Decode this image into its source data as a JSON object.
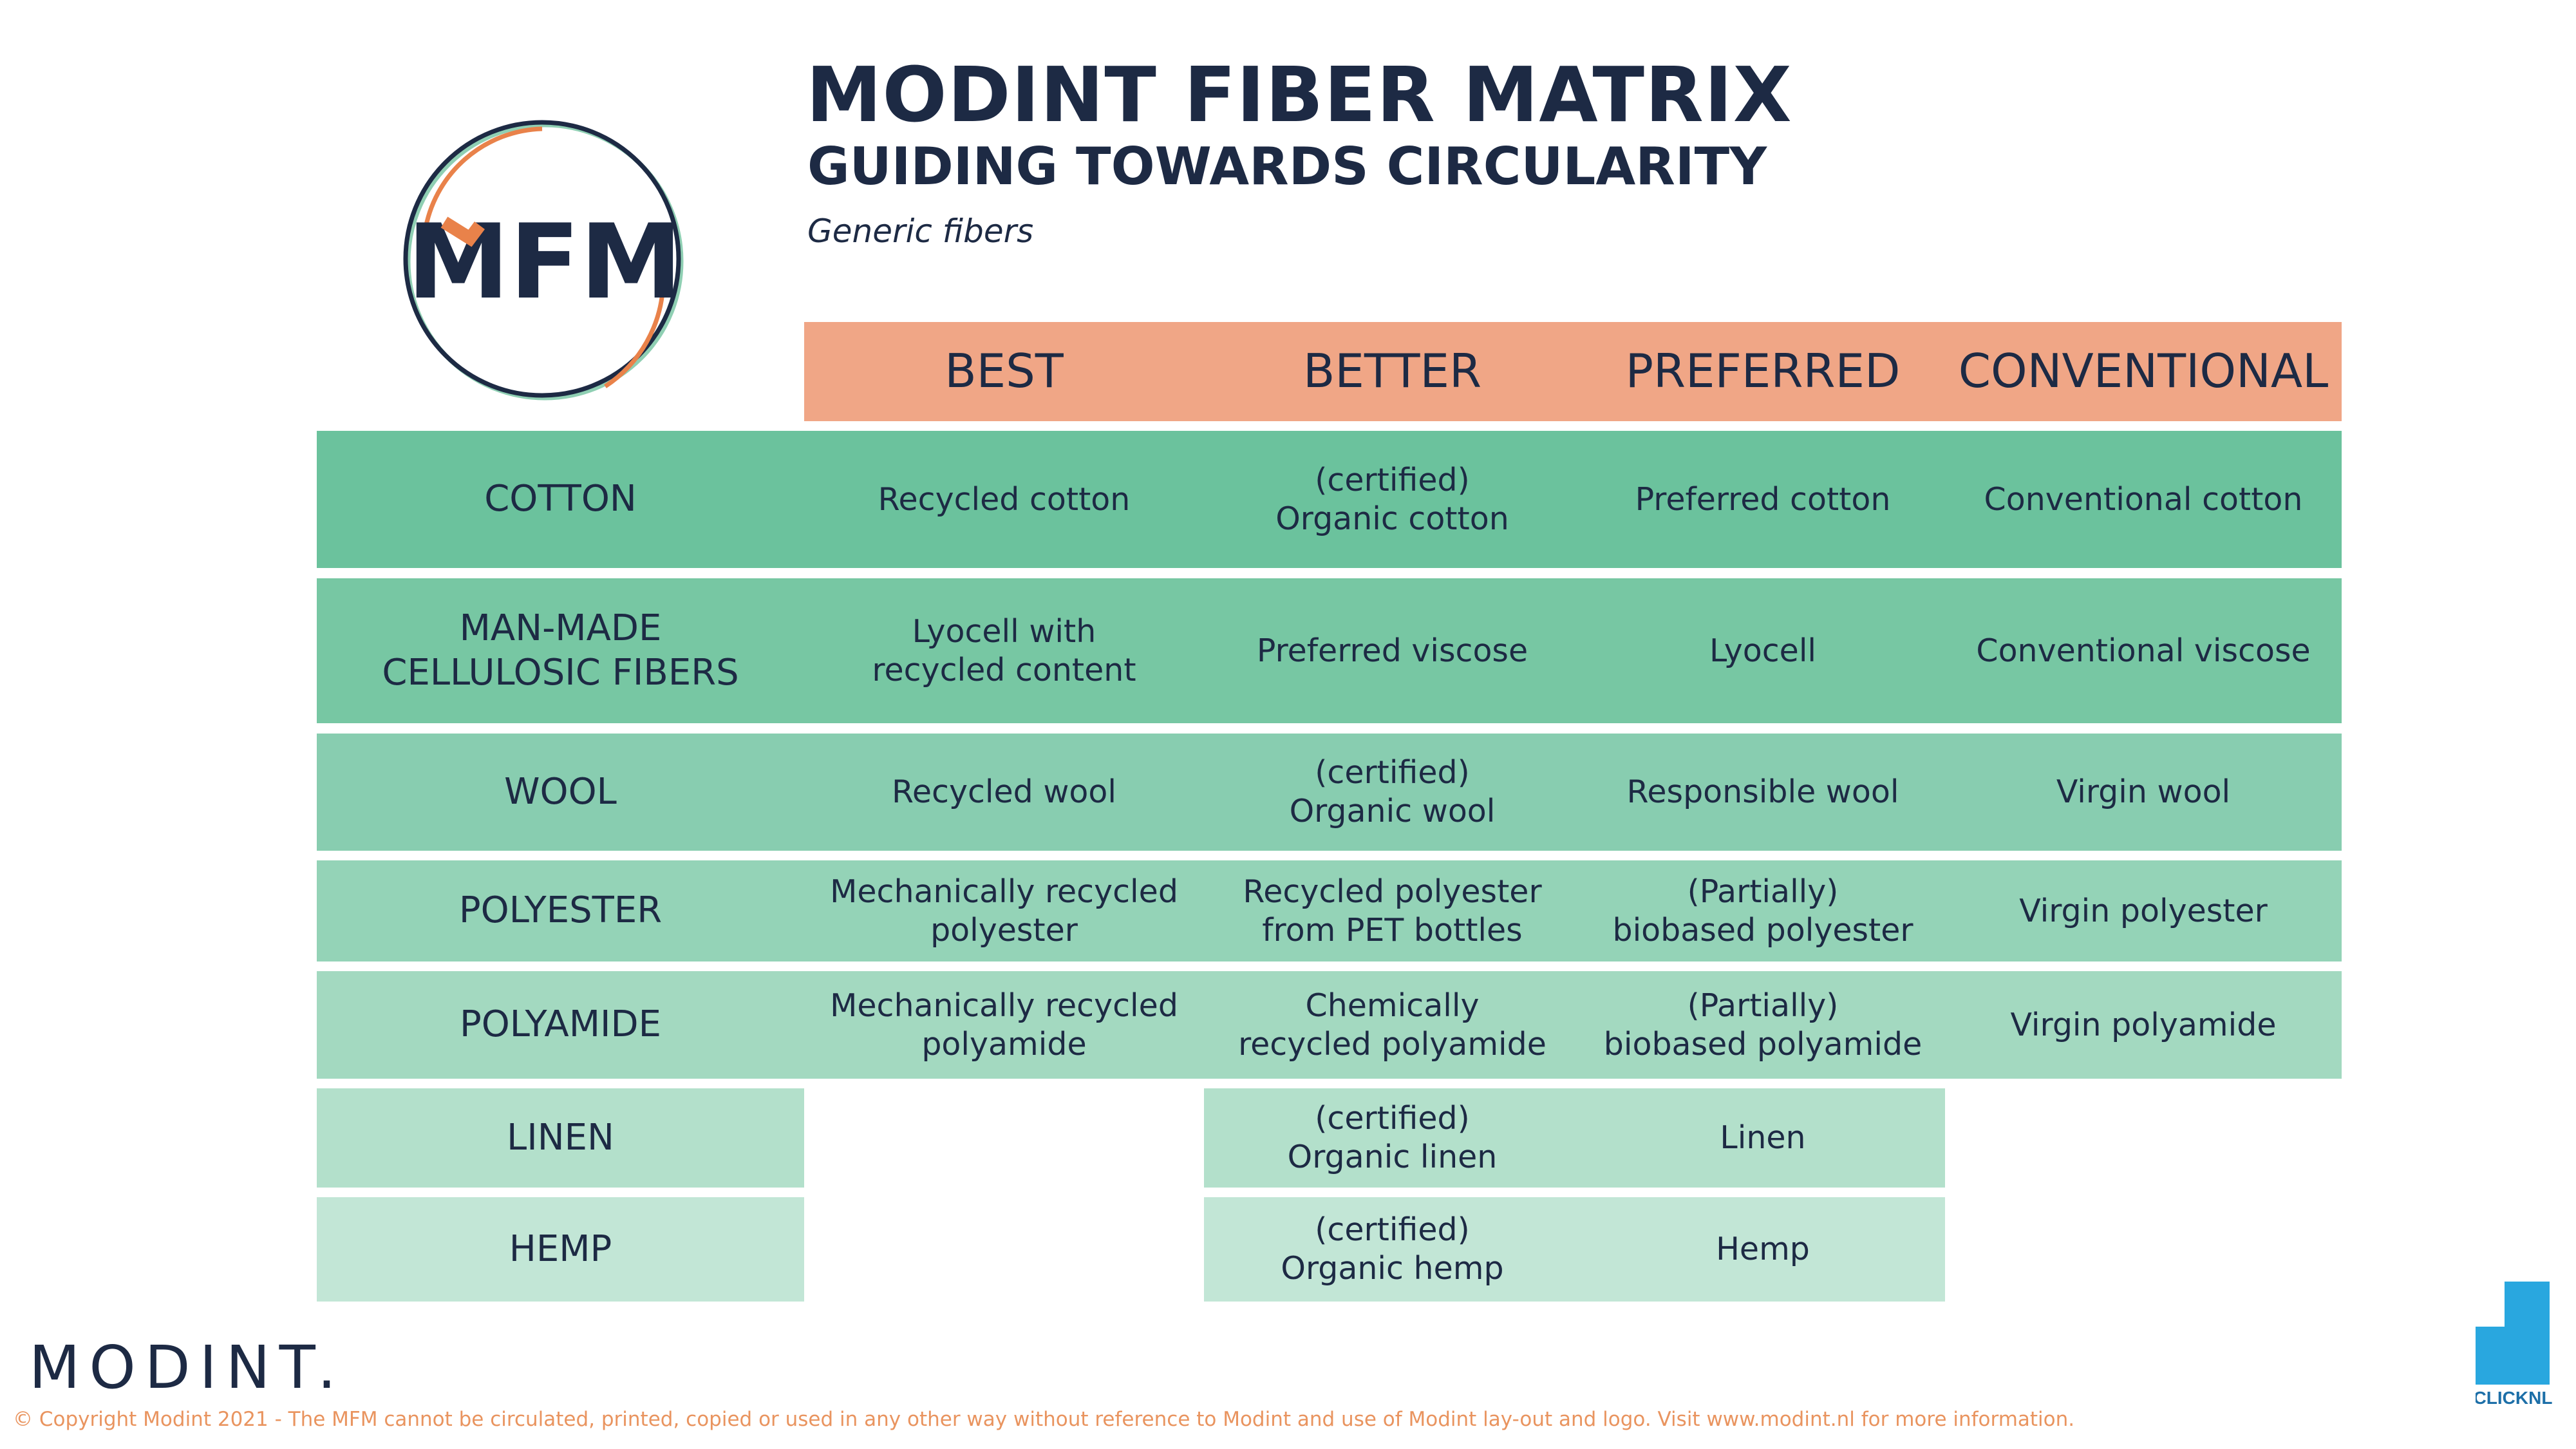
{
  "header": {
    "title": "MODINT FIBER MATRIX",
    "subtitle": "GUIDING TOWARDS CIRCULARITY",
    "description": "Generic fibers",
    "logo": "MFM"
  },
  "columns": [
    "BEST",
    "BETTER",
    "PREFERRED",
    "CONVENTIONAL"
  ],
  "rows": [
    {
      "label": [
        "COTTON"
      ],
      "color": "#6bc29d",
      "cells": [
        [
          "Recycled cotton"
        ],
        [
          "(certified)",
          "Organic cotton"
        ],
        [
          "Preferred cotton"
        ],
        [
          "Conventional cotton"
        ]
      ]
    },
    {
      "label": [
        "MAN-MADE",
        "CELLULOSIC FIBERS"
      ],
      "color": "#77c7a3",
      "cells": [
        [
          "Lyocell with",
          "recycled content"
        ],
        [
          "Preferred viscose"
        ],
        [
          "Lyocell"
        ],
        [
          "Conventional viscose"
        ]
      ]
    },
    {
      "label": [
        "WOOL"
      ],
      "color": "#88cdb0",
      "cells": [
        [
          "Recycled wool"
        ],
        [
          "(certified)",
          "Organic wool"
        ],
        [
          "Responsible wool"
        ],
        [
          "Virgin wool"
        ]
      ]
    },
    {
      "label": [
        "POLYESTER"
      ],
      "color": "#94d3b7",
      "cells": [
        [
          "Mechanically recycled",
          "polyester"
        ],
        [
          "Recycled polyester",
          "from PET bottles"
        ],
        [
          "(Partially)",
          "biobased polyester"
        ],
        [
          "Virgin polyester"
        ]
      ]
    },
    {
      "label": [
        "POLYAMIDE"
      ],
      "color": "#a3d9c0",
      "cells": [
        [
          "Mechanically recycled",
          "polyamide"
        ],
        [
          "Chemically",
          "recycled polyamide"
        ],
        [
          "(Partially)",
          "biobased polyamide"
        ],
        [
          "Virgin polyamide"
        ]
      ]
    },
    {
      "label": [
        "LINEN"
      ],
      "color": "#b3e0cb",
      "cells": [
        null,
        [
          "(certified)",
          "Organic linen"
        ],
        [
          "Linen"
        ],
        null
      ]
    },
    {
      "label": [
        "HEMP"
      ],
      "color": "#c2e6d6",
      "cells": [
        null,
        [
          "(certified)",
          "Organic hemp"
        ],
        [
          "Hemp"
        ],
        null
      ]
    }
  ],
  "footer": {
    "brand": "MODINT.",
    "copyright": "© Copyright Modint 2021 - The MFM cannot be circulated, printed, copied or used in any other way without reference to Modint and use of Modint lay-out and logo.  Visit www.modint.nl for more information.",
    "partner": "CLICKNL"
  }
}
